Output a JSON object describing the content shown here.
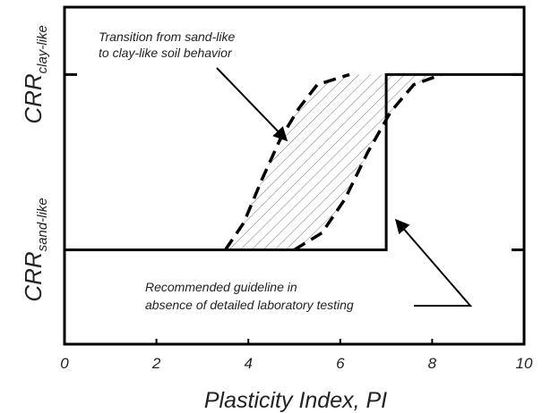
{
  "chart_data": {
    "type": "line",
    "x_label": "Plasticity Index, PI",
    "xlim": [
      0,
      10
    ],
    "xticks": [
      0,
      2,
      4,
      6,
      8,
      10
    ],
    "ylim": [
      0,
      1
    ],
    "yticks": [
      {
        "value": 0.28,
        "label": "CRR",
        "subscript": "sand-like"
      },
      {
        "value": 0.8,
        "label": "CRR",
        "subscript": "clay-like"
      }
    ],
    "grid": false,
    "series": [
      {
        "color": "#000000",
        "dashed": false,
        "x": [
          0,
          7,
          7,
          10
        ],
        "values": [
          0.28,
          0.28,
          0.8,
          0.8
        ]
      },
      {
        "color": "#000000",
        "dashed": true,
        "x": [
          3.5,
          3.9,
          4.3,
          4.7,
          5.1,
          5.5,
          6.2
        ],
        "values": [
          0.28,
          0.36,
          0.49,
          0.61,
          0.7,
          0.77,
          0.8
        ]
      },
      {
        "color": "#000000",
        "dashed": true,
        "x": [
          5.0,
          5.6,
          6.1,
          6.6,
          7.1,
          7.6,
          8.2
        ],
        "values": [
          0.28,
          0.33,
          0.43,
          0.57,
          0.69,
          0.77,
          0.8
        ]
      }
    ],
    "hatch_between": [
      1,
      2
    ],
    "annotations": [
      {
        "lines": [
          "Transition from sand-like",
          "to clay-like soil behavior"
        ]
      },
      {
        "lines": [
          "Recommended guideline in",
          "absence of detailed laboratory testing"
        ]
      }
    ]
  }
}
